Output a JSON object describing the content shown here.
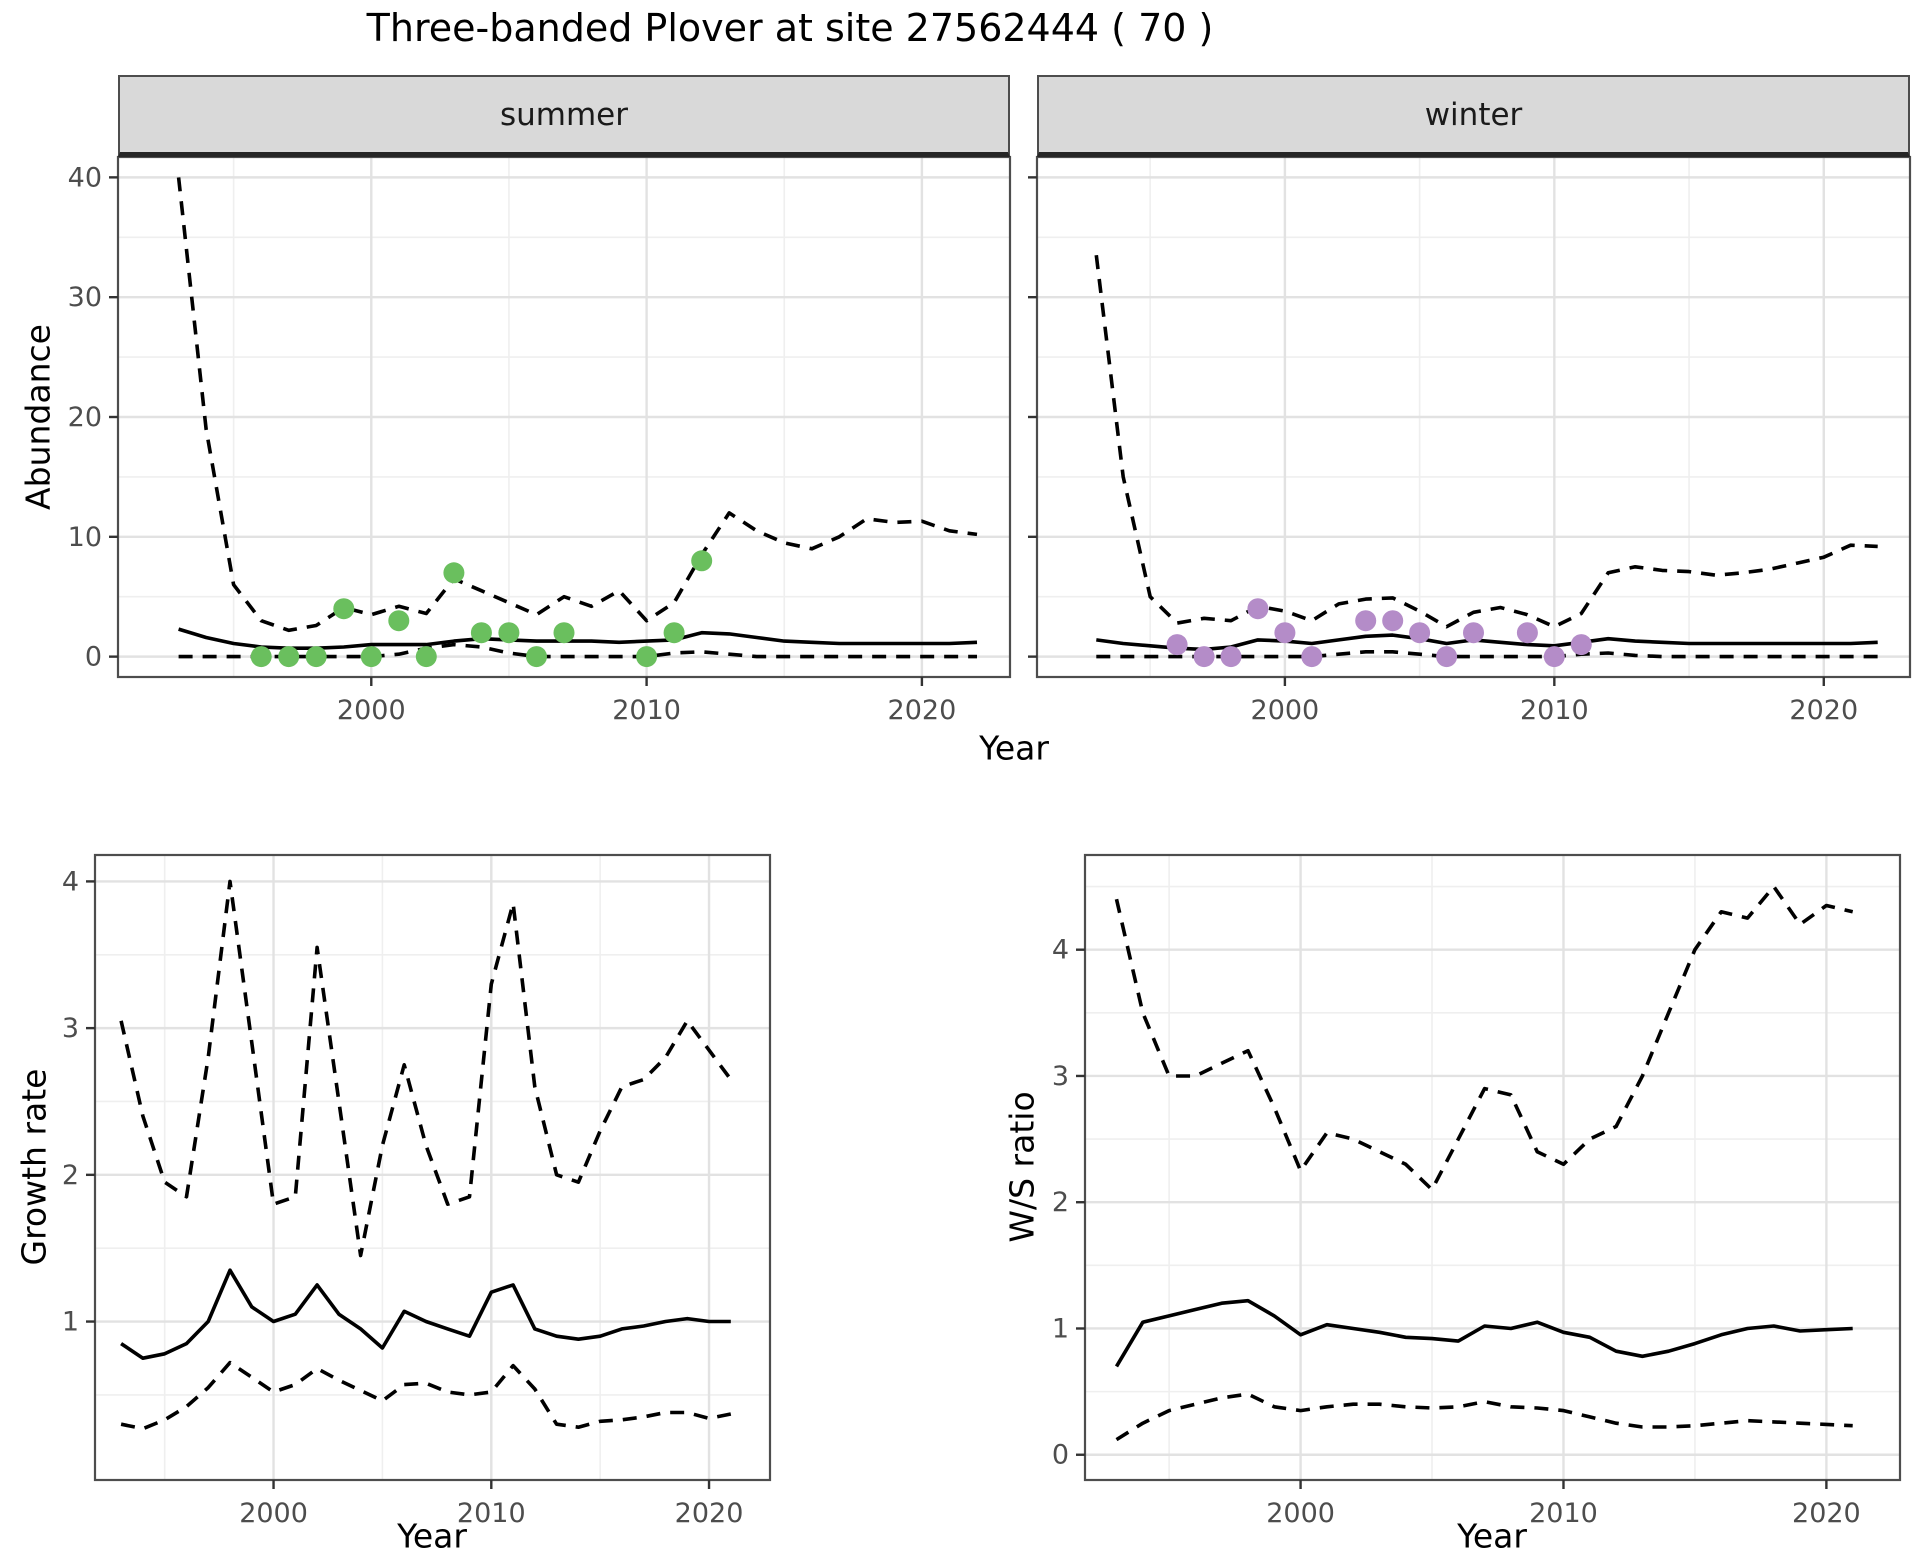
{
  "title": "Three-banded Plover at site 27562444 ( 70 )",
  "axis_labels": {
    "abundance": "Abundance",
    "year": "Year",
    "growth_rate": "Growth rate",
    "ws_ratio": "W/S ratio"
  },
  "colors": {
    "summer_point": "#6abf5e",
    "winter_point": "#b48cc8",
    "line": "#000000",
    "strip_bg": "#d9d9d9",
    "grid_major": "#e2e2e2",
    "grid_minor": "#efefef",
    "panel_border": "#4d4d4d",
    "tick_label": "#4d4d4d"
  },
  "chart_data": [
    {
      "id": "abundance-summer",
      "type": "line",
      "facet": "summer",
      "xlabel": "Year",
      "ylabel": "Abundance",
      "xlim": [
        1990.8,
        2023.2
      ],
      "ylim": [
        -1.7,
        41.7
      ],
      "x_ticks": [
        2000,
        2010,
        2020
      ],
      "x_minor": [
        1995,
        2005,
        2015
      ],
      "y_ticks": [
        0,
        10,
        20,
        30,
        40
      ],
      "y_minor": [
        5,
        15,
        25,
        35
      ],
      "show_y_labels": true,
      "x": [
        1993,
        1994,
        1995,
        1996,
        1997,
        1998,
        1999,
        2000,
        2001,
        2002,
        2003,
        2004,
        2005,
        2006,
        2007,
        2008,
        2009,
        2010,
        2011,
        2012,
        2013,
        2014,
        2015,
        2016,
        2017,
        2018,
        2019,
        2020,
        2021,
        2022
      ],
      "series": [
        {
          "name": "upper_95ci",
          "style": "dashed",
          "values": [
            40,
            19,
            6,
            3,
            2.2,
            2.6,
            4.1,
            3.5,
            4.2,
            3.6,
            6.5,
            5.5,
            4.5,
            3.5,
            5,
            4.2,
            5.5,
            3,
            4.5,
            8.5,
            12,
            10.5,
            9.5,
            9,
            10,
            11.5,
            11.2,
            11.3,
            10.5,
            10.2
          ]
        },
        {
          "name": "median",
          "style": "solid",
          "values": [
            2.3,
            1.6,
            1.1,
            0.8,
            0.7,
            0.7,
            0.8,
            1.0,
            1.0,
            1.0,
            1.3,
            1.5,
            1.4,
            1.3,
            1.3,
            1.3,
            1.2,
            1.3,
            1.4,
            2.0,
            1.9,
            1.6,
            1.3,
            1.2,
            1.1,
            1.1,
            1.1,
            1.1,
            1.1,
            1.2
          ]
        },
        {
          "name": "lower_95ci",
          "style": "dashed",
          "values": [
            0,
            0,
            0,
            0,
            0,
            0,
            0,
            0,
            0.2,
            0.7,
            1.0,
            0.8,
            0.3,
            0,
            0,
            0,
            0,
            0,
            0.3,
            0.4,
            0.2,
            0,
            0,
            0,
            0,
            0,
            0,
            0,
            0,
            0
          ]
        }
      ],
      "points": {
        "name": "observed_counts_summer",
        "color": "#6abf5e",
        "x": [
          1996,
          1997,
          1998,
          1999,
          2000,
          2001,
          2002,
          2003,
          2004,
          2005,
          2006,
          2007,
          2010,
          2011,
          2012
        ],
        "y": [
          0,
          0,
          0,
          4,
          0,
          3,
          0,
          7,
          2,
          2,
          0,
          2,
          0,
          2,
          8
        ]
      }
    },
    {
      "id": "abundance-winter",
      "type": "line",
      "facet": "winter",
      "xlabel": "Year",
      "ylabel": "Abundance",
      "xlim": [
        1990.8,
        2023.2
      ],
      "ylim": [
        -1.7,
        41.7
      ],
      "x_ticks": [
        2000,
        2010,
        2020
      ],
      "x_minor": [
        1995,
        2005,
        2015
      ],
      "y_ticks": [
        0,
        10,
        20,
        30,
        40
      ],
      "y_minor": [
        5,
        15,
        25,
        35
      ],
      "show_y_labels": false,
      "x": [
        1993,
        1994,
        1995,
        1996,
        1997,
        1998,
        1999,
        2000,
        2001,
        2002,
        2003,
        2004,
        2005,
        2006,
        2007,
        2008,
        2009,
        2010,
        2011,
        2012,
        2013,
        2014,
        2015,
        2016,
        2017,
        2018,
        2019,
        2020,
        2021,
        2022
      ],
      "series": [
        {
          "name": "upper_95ci",
          "style": "dashed",
          "values": [
            33.5,
            15,
            5,
            2.8,
            3.2,
            3.0,
            4.2,
            3.8,
            3.0,
            4.4,
            4.8,
            4.9,
            3.8,
            2.5,
            3.7,
            4.1,
            3.5,
            2.5,
            3.6,
            7.0,
            7.5,
            7.2,
            7.1,
            6.8,
            7.0,
            7.3,
            7.8,
            8.3,
            9.3,
            9.2
          ]
        },
        {
          "name": "median",
          "style": "solid",
          "values": [
            1.4,
            1.1,
            0.9,
            0.7,
            0.6,
            0.8,
            1.4,
            1.3,
            1.1,
            1.4,
            1.7,
            1.8,
            1.5,
            1.1,
            1.4,
            1.2,
            1.0,
            0.9,
            1.2,
            1.5,
            1.3,
            1.2,
            1.1,
            1.1,
            1.1,
            1.1,
            1.1,
            1.1,
            1.1,
            1.2
          ]
        },
        {
          "name": "lower_95ci",
          "style": "dashed",
          "values": [
            0,
            0,
            0,
            0,
            0,
            0,
            0,
            0,
            0,
            0.2,
            0.4,
            0.4,
            0.2,
            0,
            0,
            0,
            0,
            0,
            0.2,
            0.3,
            0.1,
            0,
            0,
            0,
            0,
            0,
            0,
            0,
            0,
            0
          ]
        }
      ],
      "points": {
        "name": "observed_counts_winter",
        "color": "#b48cc8",
        "x": [
          1996,
          1997,
          1998,
          1999,
          2000,
          2001,
          2003,
          2004,
          2005,
          2006,
          2007,
          2009,
          2010,
          2011
        ],
        "y": [
          1,
          0,
          0,
          4,
          2,
          0,
          3,
          3,
          2,
          0,
          2,
          2,
          0,
          1
        ]
      }
    },
    {
      "id": "growth-rate",
      "type": "line",
      "facet": null,
      "xlabel": "Year",
      "ylabel": "Growth rate",
      "xlim": [
        1991.8,
        2022.8
      ],
      "ylim": [
        -0.08,
        4.18
      ],
      "x_ticks": [
        2000,
        2010,
        2020
      ],
      "x_minor": [
        1995,
        2005,
        2015
      ],
      "y_ticks": [
        1,
        2,
        3,
        4
      ],
      "y_minor": [
        0.5,
        1.5,
        2.5,
        3.5
      ],
      "show_y_labels": true,
      "x": [
        1993,
        1994,
        1995,
        1996,
        1997,
        1998,
        1999,
        2000,
        2001,
        2002,
        2003,
        2004,
        2005,
        2006,
        2007,
        2008,
        2009,
        2010,
        2011,
        2012,
        2013,
        2014,
        2015,
        2016,
        2017,
        2018,
        2019,
        2020,
        2021
      ],
      "series": [
        {
          "name": "upper_95ci",
          "style": "dashed",
          "values": [
            3.05,
            2.4,
            1.95,
            1.85,
            2.8,
            4.0,
            2.9,
            1.8,
            1.85,
            3.55,
            2.5,
            1.45,
            2.2,
            2.75,
            2.2,
            1.8,
            1.85,
            3.3,
            3.85,
            2.6,
            2.0,
            1.95,
            2.3,
            2.6,
            2.65,
            2.8,
            3.05,
            2.85,
            2.65
          ]
        },
        {
          "name": "median",
          "style": "solid",
          "values": [
            0.85,
            0.75,
            0.78,
            0.85,
            1.0,
            1.35,
            1.1,
            1.0,
            1.05,
            1.25,
            1.05,
            0.95,
            0.82,
            1.07,
            1.0,
            0.95,
            0.9,
            1.2,
            1.25,
            0.95,
            0.9,
            0.88,
            0.9,
            0.95,
            0.97,
            1.0,
            1.02,
            1.0,
            1.0
          ]
        },
        {
          "name": "lower_95ci",
          "style": "dashed",
          "values": [
            0.3,
            0.27,
            0.33,
            0.42,
            0.55,
            0.72,
            0.62,
            0.52,
            0.57,
            0.68,
            0.6,
            0.53,
            0.46,
            0.57,
            0.58,
            0.52,
            0.5,
            0.52,
            0.7,
            0.54,
            0.3,
            0.28,
            0.32,
            0.33,
            0.35,
            0.38,
            0.38,
            0.34,
            0.37
          ]
        }
      ],
      "points": null
    },
    {
      "id": "ws-ratio",
      "type": "line",
      "facet": null,
      "xlabel": "Year",
      "ylabel": "W/S ratio",
      "xlim": [
        1991.8,
        2022.8
      ],
      "ylim": [
        -0.2,
        4.75
      ],
      "x_ticks": [
        2000,
        2010,
        2020
      ],
      "x_minor": [
        1995,
        2005,
        2015
      ],
      "y_ticks": [
        0,
        1,
        2,
        3,
        4
      ],
      "y_minor": [
        0.5,
        1.5,
        2.5,
        3.5,
        4.5
      ],
      "show_y_labels": true,
      "x": [
        1993,
        1994,
        1995,
        1996,
        1997,
        1998,
        1999,
        2000,
        2001,
        2002,
        2003,
        2004,
        2005,
        2006,
        2007,
        2008,
        2009,
        2010,
        2011,
        2012,
        2013,
        2014,
        2015,
        2016,
        2017,
        2018,
        2019,
        2020,
        2021
      ],
      "series": [
        {
          "name": "upper_95ci",
          "style": "dashed",
          "values": [
            4.4,
            3.5,
            3.0,
            3.0,
            3.1,
            3.2,
            2.75,
            2.25,
            2.55,
            2.5,
            2.4,
            2.3,
            2.1,
            2.5,
            2.9,
            2.85,
            2.4,
            2.3,
            2.5,
            2.6,
            3.0,
            3.5,
            4.0,
            4.3,
            4.25,
            4.5,
            4.2,
            4.35,
            4.3
          ]
        },
        {
          "name": "median",
          "style": "solid",
          "values": [
            0.7,
            1.05,
            1.1,
            1.15,
            1.2,
            1.22,
            1.1,
            0.95,
            1.03,
            1.0,
            0.97,
            0.93,
            0.92,
            0.9,
            1.02,
            1.0,
            1.05,
            0.97,
            0.93,
            0.82,
            0.78,
            0.82,
            0.88,
            0.95,
            1.0,
            1.02,
            0.98,
            0.99,
            1.0
          ]
        },
        {
          "name": "lower_95ci",
          "style": "dashed",
          "values": [
            0.12,
            0.25,
            0.35,
            0.4,
            0.45,
            0.48,
            0.38,
            0.35,
            0.38,
            0.4,
            0.4,
            0.38,
            0.37,
            0.38,
            0.42,
            0.38,
            0.37,
            0.35,
            0.3,
            0.25,
            0.22,
            0.22,
            0.23,
            0.25,
            0.27,
            0.26,
            0.25,
            0.24,
            0.23
          ]
        }
      ],
      "points": null
    }
  ]
}
